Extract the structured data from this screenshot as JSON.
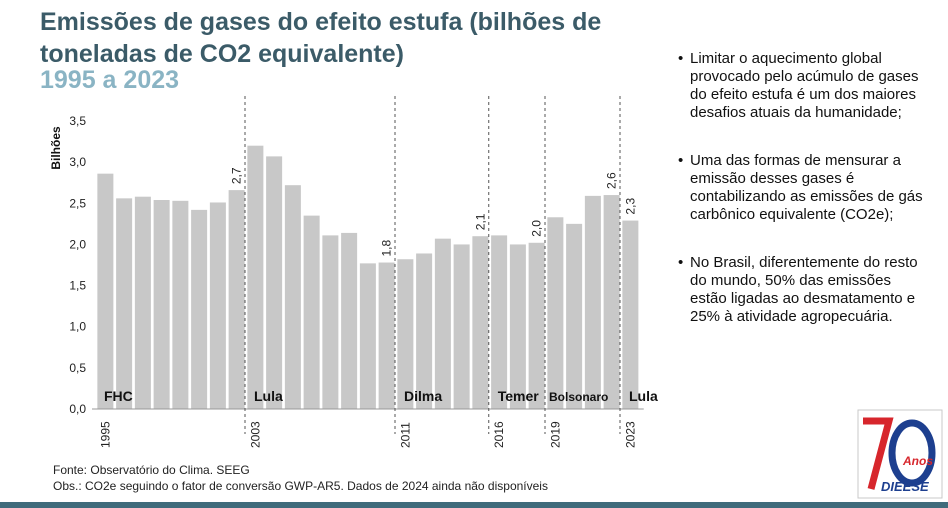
{
  "title": "Emissões de gases do efeito estufa (bilhões de toneladas de CO2 equivalente)",
  "subtitle": "1995 a 2023",
  "chart_data": {
    "type": "bar",
    "ylabel": "Bilhões",
    "ylim": [
      0,
      3.5
    ],
    "yticks": [
      "0,0",
      "0,5",
      "1,0",
      "1,5",
      "2,0",
      "2,5",
      "3,0",
      "3,5"
    ],
    "categories": [
      "1995",
      "1996",
      "1997",
      "1998",
      "1999",
      "2000",
      "2001",
      "2002",
      "2003",
      "2004",
      "2005",
      "2006",
      "2007",
      "2008",
      "2009",
      "2010",
      "2011",
      "2012",
      "2013",
      "2014",
      "2015",
      "2016",
      "2017",
      "2018",
      "2019",
      "2020",
      "2021",
      "2022",
      "2023"
    ],
    "xtick_labels": [
      "1995",
      "2003",
      "2011",
      "2016",
      "2019",
      "2023"
    ],
    "values": [
      2.86,
      2.56,
      2.58,
      2.54,
      2.53,
      2.42,
      2.51,
      2.66,
      3.2,
      3.07,
      2.72,
      2.35,
      2.11,
      2.14,
      1.77,
      1.78,
      1.82,
      1.89,
      2.07,
      2.0,
      2.1,
      2.11,
      2.0,
      2.02,
      2.33,
      2.25,
      2.59,
      2.6,
      2.29
    ],
    "data_labels": [
      {
        "x": "2002",
        "label": "2,7"
      },
      {
        "x": "2010",
        "label": "1,8"
      },
      {
        "x": "2015",
        "label": "2,1"
      },
      {
        "x": "2018",
        "label": "2,0"
      },
      {
        "x": "2022",
        "label": "2,6"
      },
      {
        "x": "2023",
        "label": "2,3"
      }
    ],
    "periods": [
      {
        "label": "FHC",
        "start": "1995"
      },
      {
        "label": "Lula",
        "start": "2003"
      },
      {
        "label": "Dilma",
        "start": "2011"
      },
      {
        "label": "Temer",
        "start": "2016"
      },
      {
        "label": "Bolsonaro",
        "start": "2019"
      },
      {
        "label": "Lula",
        "start": "2023"
      }
    ],
    "bar_color": "#c8c8c8",
    "grid": false
  },
  "bullets": [
    "Limitar o aquecimento global provocado pelo acúmulo de gases do efeito estufa é um dos maiores desafios atuais da humanidade;",
    "Uma das formas de mensurar a emissão desses gases é contabilizando as emissões de gás carbônico equivalente (CO2e);",
    "No Brasil, diferentemente do resto do mundo, 50% das emissões estão ligadas ao desmatamento e 25% à atividade  agropecuária."
  ],
  "footer": {
    "source": "Fonte: Observatório do Clima. SEEG",
    "note": "Obs.: CO2e seguindo o fator de conversão GWP-AR5. Dados de 2024 ainda não disponíveis"
  },
  "logo": {
    "number": "70",
    "word": "Anos",
    "org": "DIEESE"
  },
  "colors": {
    "title": "#3b5b68",
    "subtitle": "#8ab4c4",
    "logo_red": "#d7262c",
    "logo_blue": "#1d3f8f"
  }
}
